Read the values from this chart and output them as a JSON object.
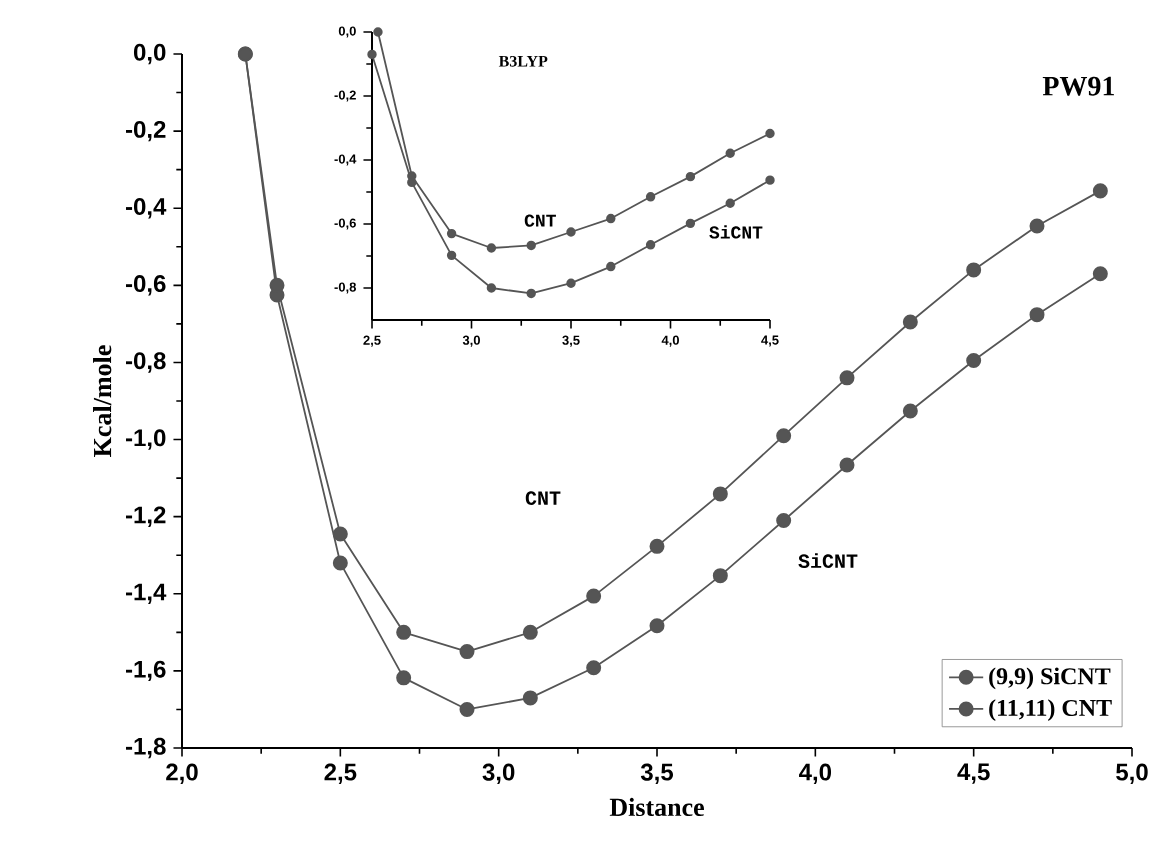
{
  "chart_data": [
    {
      "type": "line",
      "title": "PW91",
      "xlabel": "Distance",
      "ylabel": "Kcal/mole",
      "xlim": [
        2.0,
        5.0
      ],
      "ylim": [
        -1.8,
        0.0
      ],
      "xticks": [
        {
          "value": 2.0,
          "label": "2,0"
        },
        {
          "value": 2.5,
          "label": "2,5"
        },
        {
          "value": 3.0,
          "label": "3,0"
        },
        {
          "value": 3.5,
          "label": "3,5"
        },
        {
          "value": 4.0,
          "label": "4,0"
        },
        {
          "value": 4.5,
          "label": "4,5"
        },
        {
          "value": 5.0,
          "label": "5,0"
        }
      ],
      "yticks": [
        {
          "value": 0.0,
          "label": "0,0"
        },
        {
          "value": -0.2,
          "label": "-0,2"
        },
        {
          "value": -0.4,
          "label": "-0,4"
        },
        {
          "value": -0.6,
          "label": "-0,6"
        },
        {
          "value": -0.8,
          "label": "-0,8"
        },
        {
          "value": -1.0,
          "label": "-1,0"
        },
        {
          "value": -1.2,
          "label": "-1,2"
        },
        {
          "value": -1.4,
          "label": "-1,4"
        },
        {
          "value": -1.6,
          "label": "-1,6"
        },
        {
          "value": -1.8,
          "label": "-1,8"
        }
      ],
      "marker": "circle",
      "legend": "bottom right",
      "series": [
        {
          "name": "(9,9) SiCNT",
          "color": "#555555",
          "x": [
            2.2,
            2.3,
            2.5,
            2.7,
            2.9,
            3.1,
            3.3,
            3.5,
            3.7,
            3.9,
            4.1,
            4.3,
            4.5,
            4.7,
            4.9
          ],
          "values": [
            0.0,
            -0.625,
            -1.32,
            -1.618,
            -1.7,
            -1.67,
            -1.592,
            -1.483,
            -1.353,
            -1.21,
            -1.066,
            -0.926,
            -0.795,
            -0.676,
            -0.57
          ]
        },
        {
          "name": "(11,11) CNT",
          "color": "#555555",
          "x": [
            2.2,
            2.3,
            2.5,
            2.7,
            2.9,
            3.1,
            3.3,
            3.5,
            3.7,
            3.9,
            4.1,
            4.3,
            4.5,
            4.7,
            4.9
          ],
          "values": [
            0.0,
            -0.6,
            -1.245,
            -1.5,
            -1.55,
            -1.5,
            -1.406,
            -1.277,
            -1.141,
            -0.99,
            -0.84,
            -0.695,
            -0.56,
            -0.446,
            -0.355
          ]
        }
      ],
      "annotations": [
        "CNT",
        "SiCNT"
      ]
    },
    {
      "type": "line",
      "title": "B3LYP",
      "xlim": [
        2.5,
        4.5
      ],
      "ylim": [
        -0.9,
        0.0
      ],
      "xticks": [
        {
          "value": 2.5,
          "label": "2,5"
        },
        {
          "value": 3.0,
          "label": "3,0"
        },
        {
          "value": 3.5,
          "label": "3,5"
        },
        {
          "value": 4.0,
          "label": "4,0"
        },
        {
          "value": 4.5,
          "label": "4,5"
        }
      ],
      "yticks": [
        {
          "value": 0.0,
          "label": "0,0"
        },
        {
          "value": -0.2,
          "label": "-0,2"
        },
        {
          "value": -0.4,
          "label": "-0,4"
        },
        {
          "value": -0.6,
          "label": "-0,6"
        },
        {
          "value": -0.8,
          "label": "-0,8"
        }
      ],
      "marker": "circle",
      "series": [
        {
          "name": "SiCNT",
          "color": "#555555",
          "x": [
            2.5,
            2.7,
            2.9,
            3.1,
            3.3,
            3.5,
            3.7,
            3.9,
            4.1,
            4.3,
            4.5
          ],
          "values": [
            -0.07,
            -0.47,
            -0.698,
            -0.8,
            -0.817,
            -0.785,
            -0.733,
            -0.665,
            -0.598,
            -0.535,
            -0.463
          ]
        },
        {
          "name": "CNT",
          "color": "#555555",
          "x": [
            2.53,
            2.7,
            2.9,
            3.1,
            3.3,
            3.5,
            3.7,
            3.9,
            4.1,
            4.3,
            4.5
          ],
          "values": [
            0.0,
            -0.45,
            -0.63,
            -0.675,
            -0.667,
            -0.625,
            -0.583,
            -0.515,
            -0.452,
            -0.379,
            -0.317
          ]
        }
      ]
    }
  ]
}
